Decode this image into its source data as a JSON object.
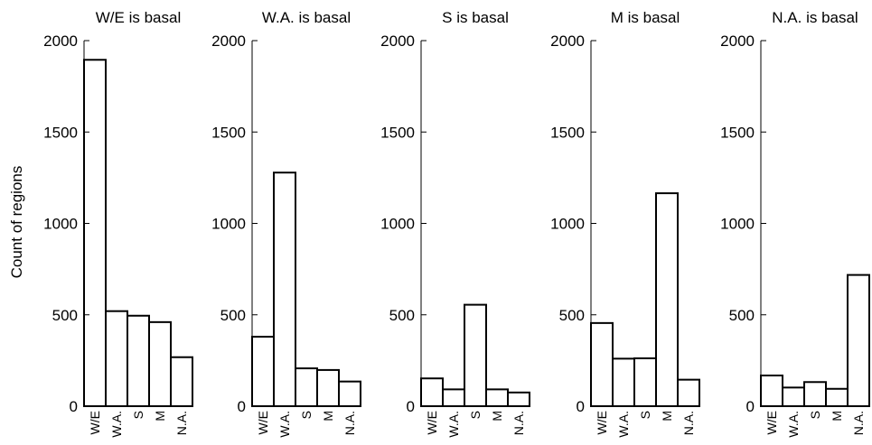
{
  "chart_data": {
    "type": "bar",
    "ylabel": "Count of regions",
    "ylim": [
      0,
      2000
    ],
    "yticks": [
      0,
      500,
      1000,
      1500,
      2000
    ],
    "categories": [
      "W/E",
      "W.A.",
      "S",
      "M",
      "N.A."
    ],
    "bar_fill": "#ffffff",
    "bar_stroke": "#000000",
    "panels": [
      {
        "title": "W/E is basal",
        "values": [
          1895,
          520,
          495,
          460,
          268
        ]
      },
      {
        "title": "W.A. is basal",
        "values": [
          380,
          1278,
          207,
          198,
          135
        ]
      },
      {
        "title": "S is basal",
        "values": [
          152,
          92,
          555,
          92,
          75
        ]
      },
      {
        "title": "M is basal",
        "values": [
          455,
          260,
          262,
          1165,
          145
        ]
      },
      {
        "title": "N.A. is basal",
        "values": [
          168,
          102,
          132,
          95,
          718
        ]
      }
    ]
  }
}
